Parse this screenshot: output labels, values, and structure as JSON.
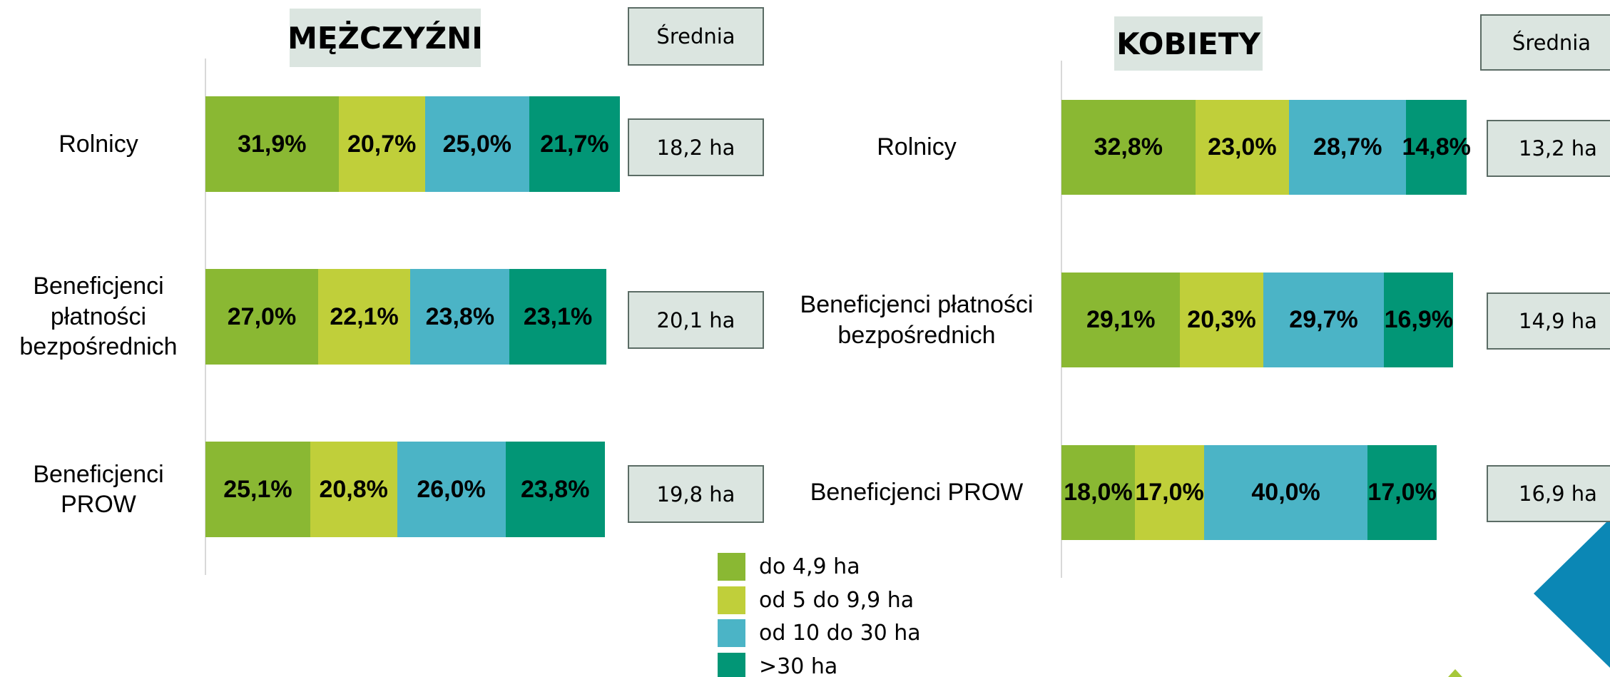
{
  "chart_data": [
    {
      "type": "bar",
      "stacked": true,
      "orientation": "horizontal",
      "title": "MĘŻCZYŹNI",
      "categories": [
        "Rolnicy",
        "Beneficjenci płatności bezpośrednich",
        "Beneficjenci PROW"
      ],
      "xlim": [
        0,
        100
      ],
      "series": [
        {
          "name": "do 4,9 ha",
          "color": "#8ab833",
          "values": [
            31.9,
            27.0,
            25.1
          ],
          "value_labels": [
            "31,9%",
            "27,0%",
            "25,1%"
          ]
        },
        {
          "name": "od 5 do 9,9 ha",
          "color": "#c0cf3a",
          "values": [
            20.7,
            22.1,
            20.8
          ],
          "value_labels": [
            "20,7%",
            "22,1%",
            "20,8%"
          ]
        },
        {
          "name": "od 10 do 30 ha",
          "color": "#4bb4c6",
          "values": [
            25.0,
            23.8,
            26.0
          ],
          "value_labels": [
            "25,0%",
            "23,8%",
            "26,0%"
          ]
        },
        {
          "name": ">30 ha",
          "color": "#029676",
          "values": [
            21.7,
            23.1,
            23.8
          ],
          "value_labels": [
            "21,7%",
            "23,1%",
            "23,8%"
          ]
        }
      ],
      "average_title": "Średnia",
      "averages": [
        "18,2 ha",
        "20,1 ha",
        "19,8 ha"
      ]
    },
    {
      "type": "bar",
      "stacked": true,
      "orientation": "horizontal",
      "title": "KOBIETY",
      "categories": [
        "Rolnicy",
        "Beneficjenci płatności bezpośrednich",
        "Beneficjenci PROW"
      ],
      "xlim": [
        0,
        100
      ],
      "series": [
        {
          "name": "do 4,9 ha",
          "color": "#8ab833",
          "values": [
            32.8,
            29.1,
            18.0
          ],
          "value_labels": [
            "32,8%",
            "29,1%",
            "18,0%"
          ]
        },
        {
          "name": "od 5 do 9,9 ha",
          "color": "#c0cf3a",
          "values": [
            23.0,
            20.3,
            17.0
          ],
          "value_labels": [
            "23,0%",
            "20,3%",
            "17,0%"
          ]
        },
        {
          "name": "od 10 do 30 ha",
          "color": "#4bb4c6",
          "values": [
            28.7,
            29.7,
            40.0
          ],
          "value_labels": [
            "28,7%",
            "29,7%",
            "40,0%"
          ]
        },
        {
          "name": ">30 ha",
          "color": "#029676",
          "values": [
            14.8,
            16.9,
            17.0
          ],
          "value_labels": [
            "14,8%",
            "16,9%",
            "17,0%"
          ]
        }
      ],
      "average_title": "Średnia",
      "averages": [
        "13,2 ha",
        "14,9 ha",
        "16,9 ha"
      ]
    }
  ]
}
